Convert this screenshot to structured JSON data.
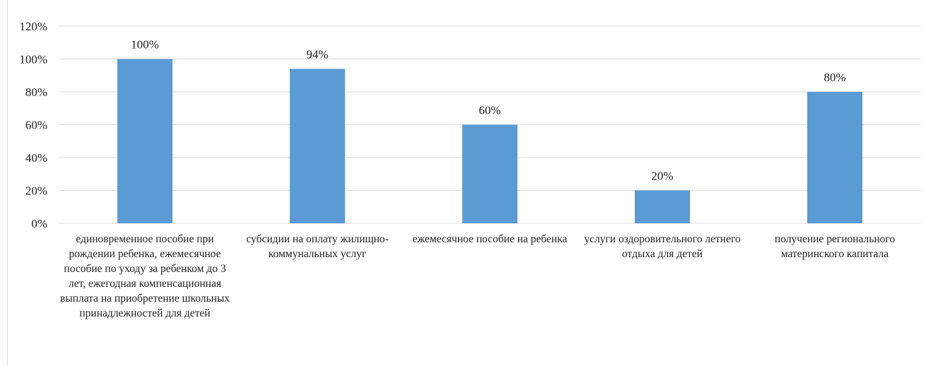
{
  "chart_data": {
    "type": "bar",
    "categories": [
      "единовременное пособие при рождении ребенка, ежемесячное пособие по уходу за ребенком до 3 лет, ежегодная компенсационная выплата  на приобретение школьных принадлежностей для детей",
      "субсидии на оплату жилищно-коммунальных услуг",
      "ежемесячное пособие на ребенка",
      "услуги оздоровительного летнего отдыха для детей",
      "получение регионального материнского капитала"
    ],
    "values": [
      100,
      94,
      60,
      20,
      80
    ],
    "data_labels": [
      "100%",
      "94%",
      "60%",
      "20%",
      "80%"
    ],
    "ylim": [
      0,
      120
    ],
    "yticks": [
      0,
      20,
      40,
      60,
      80,
      100,
      120
    ],
    "ytick_labels": [
      "0%",
      "20%",
      "40%",
      "60%",
      "80%",
      "100%",
      "120%"
    ],
    "grid": true,
    "bar_color": "#5b9bd5",
    "grid_color": "#d9d9d9",
    "title": "",
    "xlabel": "",
    "ylabel": ""
  }
}
